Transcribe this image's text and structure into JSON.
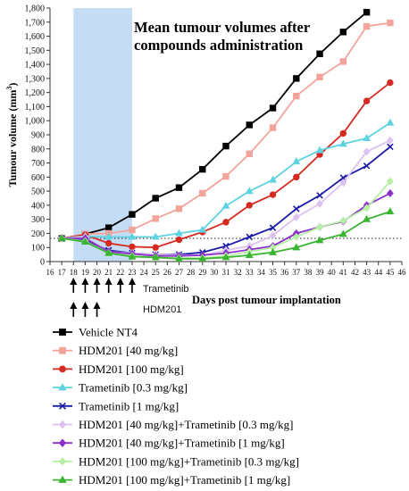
{
  "chart_data": {
    "type": "line",
    "title": "Mean tumour volumes after compounds administration",
    "title_lines": [
      "Mean tumour volumes after",
      "compounds administration"
    ],
    "xlabel": "Days post tumour implantation",
    "ylabel": "Tumour volume (mm³)",
    "ylabel_parts": {
      "base": "Tumour volume (mm",
      "sup": "3",
      "end": ")"
    },
    "xlim": [
      16,
      46
    ],
    "ylim": [
      0,
      1800
    ],
    "x_ticks": [
      16,
      17,
      18,
      19,
      20,
      21,
      22,
      23,
      24,
      25,
      26,
      27,
      28,
      29,
      30,
      31,
      32,
      33,
      34,
      35,
      36,
      37,
      38,
      39,
      40,
      41,
      42,
      43,
      44,
      45,
      46
    ],
    "y_ticks": [
      0,
      100,
      200,
      300,
      400,
      500,
      600,
      700,
      800,
      900,
      1000,
      1100,
      1200,
      1300,
      1400,
      1500,
      1600,
      1700,
      1800
    ],
    "y_tick_labels": [
      "0",
      "100",
      "200",
      "300",
      "400",
      "500",
      "600",
      "700",
      "800",
      "900",
      "1,000",
      "1,100",
      "1,200",
      "1,300",
      "1,400",
      "1,500",
      "1,600",
      "1,700",
      "1,800"
    ],
    "grid": false,
    "reference_line": {
      "y": 165,
      "style": "dotted"
    },
    "shaded_region": {
      "x": [
        18,
        23
      ],
      "color": "#c5dcf5"
    },
    "dosing_annotations": [
      {
        "label": "Trametinib",
        "days": [
          18,
          19,
          20,
          21,
          22,
          23
        ]
      },
      {
        "label": "HDM201",
        "days": [
          18,
          19,
          20
        ]
      }
    ],
    "legend_position": "below",
    "series": [
      {
        "name": "Vehicle NT4",
        "color": "#000000",
        "marker": "square",
        "x": [
          17,
          19,
          21,
          23,
          25,
          27,
          29,
          31,
          33,
          35,
          37,
          39,
          41,
          43
        ],
        "y": [
          165,
          195,
          240,
          335,
          450,
          525,
          655,
          820,
          970,
          1090,
          1300,
          1475,
          1630,
          1770
        ]
      },
      {
        "name": "HDM201 [40 mg/kg]",
        "color": "#f2a49b",
        "marker": "square",
        "x": [
          17,
          19,
          21,
          23,
          25,
          27,
          29,
          31,
          33,
          35,
          37,
          39,
          41,
          43,
          45
        ],
        "y": [
          165,
          195,
          200,
          225,
          305,
          375,
          485,
          605,
          765,
          950,
          1175,
          1310,
          1420,
          1670,
          1695
        ]
      },
      {
        "name": "HDM201 [100 mg/kg]",
        "color": "#d42a22",
        "marker": "circle",
        "x": [
          17,
          19,
          21,
          23,
          25,
          27,
          29,
          31,
          33,
          35,
          37,
          39,
          41,
          43,
          45
        ],
        "y": [
          165,
          190,
          130,
          105,
          100,
          155,
          210,
          280,
          400,
          475,
          600,
          760,
          910,
          1140,
          1270
        ]
      },
      {
        "name": "Trametinib [0.3 mg/kg]",
        "color": "#5fd3e0",
        "marker": "triangle",
        "x": [
          17,
          19,
          21,
          23,
          25,
          27,
          29,
          31,
          33,
          35,
          37,
          39,
          41,
          43,
          45
        ],
        "y": [
          165,
          180,
          175,
          175,
          175,
          200,
          225,
          395,
          500,
          580,
          710,
          790,
          835,
          875,
          985
        ]
      },
      {
        "name": "Trametinib [1 mg/kg]",
        "color": "#1c1ca8",
        "marker": "cross",
        "x": [
          17,
          19,
          21,
          23,
          25,
          27,
          29,
          31,
          33,
          35,
          37,
          39,
          41,
          43,
          45
        ],
        "y": [
          165,
          150,
          80,
          60,
          50,
          50,
          65,
          110,
          175,
          240,
          375,
          470,
          595,
          680,
          815
        ]
      },
      {
        "name": "HDM201 [40 mg/kg]+Trametinib [0.3 mg/kg]",
        "color": "#dcc2f0",
        "marker": "diamond",
        "x": [
          17,
          19,
          21,
          23,
          25,
          27,
          29,
          31,
          33,
          35,
          37,
          39,
          41,
          43,
          45
        ],
        "y": [
          165,
          175,
          70,
          60,
          50,
          45,
          45,
          80,
          110,
          185,
          315,
          410,
          560,
          780,
          860
        ]
      },
      {
        "name": "HDM201 [40 mg/kg]+Trametinib [1 mg/kg]",
        "color": "#8a2fc9",
        "marker": "diamond",
        "x": [
          17,
          19,
          21,
          23,
          25,
          27,
          29,
          31,
          33,
          35,
          37,
          39,
          41,
          43,
          45
        ],
        "y": [
          165,
          165,
          70,
          55,
          40,
          40,
          45,
          60,
          85,
          110,
          200,
          245,
          285,
          400,
          485
        ]
      },
      {
        "name": "HDM201 [100 mg/kg]+Trametinib [0.3 mg/kg]",
        "color": "#b6efa4",
        "marker": "diamond",
        "x": [
          17,
          19,
          21,
          23,
          25,
          27,
          29,
          31,
          33,
          35,
          37,
          39,
          41,
          43,
          45
        ],
        "y": [
          165,
          145,
          60,
          40,
          30,
          25,
          25,
          40,
          70,
          100,
          175,
          245,
          290,
          380,
          570
        ]
      },
      {
        "name": "HDM201 [100 mg/kg]+Trametinib [1 mg/kg]",
        "color": "#3bb431",
        "marker": "triangle",
        "x": [
          17,
          19,
          21,
          23,
          25,
          27,
          29,
          31,
          33,
          35,
          37,
          39,
          41,
          43,
          45
        ],
        "y": [
          165,
          140,
          60,
          35,
          30,
          20,
          20,
          30,
          45,
          65,
          100,
          150,
          195,
          300,
          355
        ]
      }
    ]
  }
}
